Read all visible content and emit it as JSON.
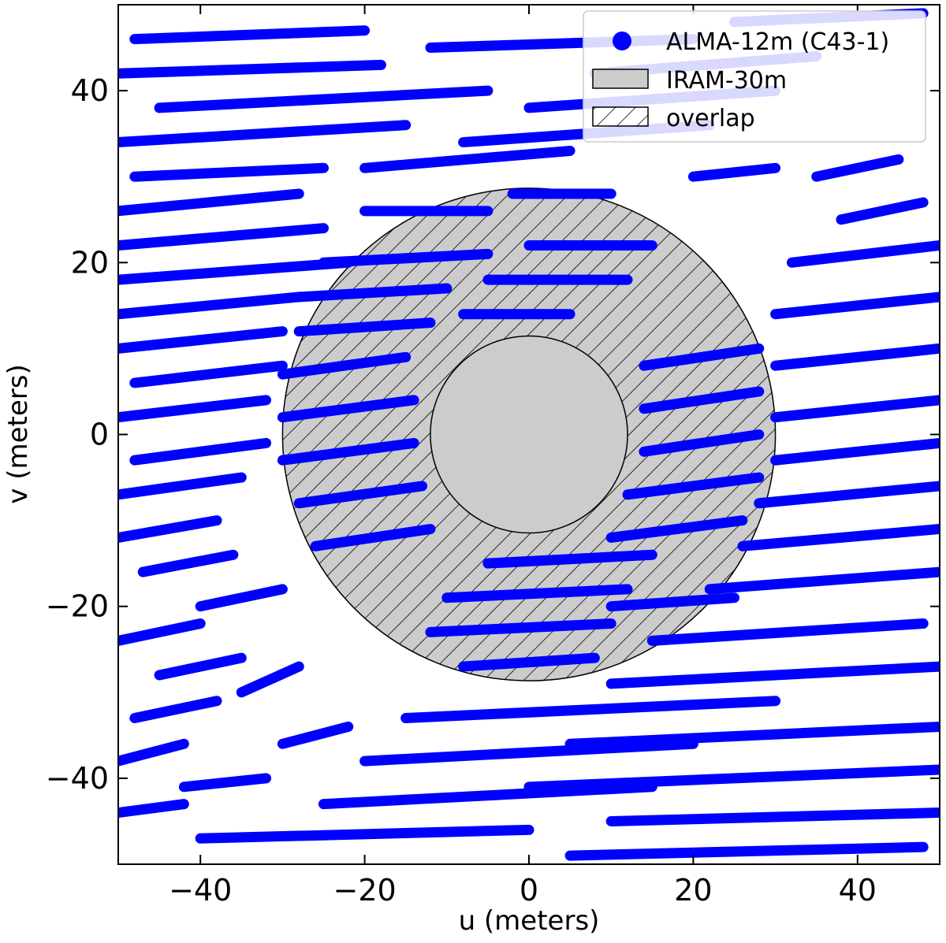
{
  "chart_data": {
    "type": "scatter",
    "xlabel": "u (meters)",
    "ylabel": "v (meters)",
    "xlim": [
      -50,
      50
    ],
    "ylim": [
      -50,
      50
    ],
    "xticks": [
      {
        "value": -40,
        "label": "−40"
      },
      {
        "value": -20,
        "label": "−20"
      },
      {
        "value": 0,
        "label": "0"
      },
      {
        "value": 20,
        "label": "20"
      },
      {
        "value": 40,
        "label": "40"
      }
    ],
    "yticks": [
      {
        "value": -40,
        "label": "−40"
      },
      {
        "value": -20,
        "label": "−20"
      },
      {
        "value": 0,
        "label": "0"
      },
      {
        "value": 20,
        "label": "20"
      },
      {
        "value": 40,
        "label": "40"
      }
    ],
    "grid": false,
    "legend_position": "top-right",
    "series": [
      {
        "name": "ALMA-12m (C43-1)",
        "kind": "uv-tracks",
        "color": "#0000ff",
        "tracks": [
          {
            "x0": -48,
            "y0": 46,
            "x1": -20,
            "y1": 47
          },
          {
            "x0": -50,
            "y0": 42,
            "x1": -18,
            "y1": 43
          },
          {
            "x0": -12,
            "y0": 45,
            "x1": 20,
            "y1": 46
          },
          {
            "x0": 8,
            "y0": 42,
            "x1": 35,
            "y1": 44
          },
          {
            "x0": 25,
            "y0": 48,
            "x1": 48,
            "y1": 49
          },
          {
            "x0": -45,
            "y0": 38,
            "x1": -5,
            "y1": 40
          },
          {
            "x0": 0,
            "y0": 38,
            "x1": 30,
            "y1": 40
          },
          {
            "x0": -50,
            "y0": 34,
            "x1": -15,
            "y1": 36
          },
          {
            "x0": -8,
            "y0": 34,
            "x1": 22,
            "y1": 36
          },
          {
            "x0": -48,
            "y0": 30,
            "x1": -25,
            "y1": 31
          },
          {
            "x0": -20,
            "y0": 31,
            "x1": 5,
            "y1": 33
          },
          {
            "x0": -50,
            "y0": 26,
            "x1": -28,
            "y1": 28
          },
          {
            "x0": -50,
            "y0": 22,
            "x1": -25,
            "y1": 24
          },
          {
            "x0": -50,
            "y0": 18,
            "x1": -22,
            "y1": 20
          },
          {
            "x0": -50,
            "y0": 14,
            "x1": -28,
            "y1": 16
          },
          {
            "x0": -50,
            "y0": 10,
            "x1": -30,
            "y1": 12
          },
          {
            "x0": -48,
            "y0": 6,
            "x1": -30,
            "y1": 8
          },
          {
            "x0": -50,
            "y0": 2,
            "x1": -32,
            "y1": 4
          },
          {
            "x0": -48,
            "y0": -3,
            "x1": -32,
            "y1": -1
          },
          {
            "x0": -50,
            "y0": -7,
            "x1": -35,
            "y1": -5
          },
          {
            "x0": -50,
            "y0": -12,
            "x1": -38,
            "y1": -10
          },
          {
            "x0": -47,
            "y0": -16,
            "x1": -36,
            "y1": -14
          },
          {
            "x0": -20,
            "y0": 26,
            "x1": -5,
            "y1": 26
          },
          {
            "x0": -2,
            "y0": 28,
            "x1": 10,
            "y1": 28
          },
          {
            "x0": -25,
            "y0": 20,
            "x1": -5,
            "y1": 21
          },
          {
            "x0": 0,
            "y0": 22,
            "x1": 15,
            "y1": 22
          },
          {
            "x0": -28,
            "y0": 16,
            "x1": -10,
            "y1": 17
          },
          {
            "x0": -5,
            "y0": 18,
            "x1": 12,
            "y1": 18
          },
          {
            "x0": -28,
            "y0": 12,
            "x1": -12,
            "y1": 13
          },
          {
            "x0": -8,
            "y0": 14,
            "x1": 5,
            "y1": 14
          },
          {
            "x0": -30,
            "y0": 7,
            "x1": -15,
            "y1": 9
          },
          {
            "x0": -30,
            "y0": 2,
            "x1": -14,
            "y1": 4
          },
          {
            "x0": -30,
            "y0": -3,
            "x1": -14,
            "y1": -1
          },
          {
            "x0": -28,
            "y0": -8,
            "x1": -13,
            "y1": -6
          },
          {
            "x0": -26,
            "y0": -13,
            "x1": -12,
            "y1": -11
          },
          {
            "x0": 14,
            "y0": 8,
            "x1": 28,
            "y1": 10
          },
          {
            "x0": 14,
            "y0": 3,
            "x1": 28,
            "y1": 5
          },
          {
            "x0": 14,
            "y0": -2,
            "x1": 28,
            "y1": 0
          },
          {
            "x0": 12,
            "y0": -7,
            "x1": 28,
            "y1": -5
          },
          {
            "x0": 10,
            "y0": -12,
            "x1": 26,
            "y1": -10
          },
          {
            "x0": -5,
            "y0": -15,
            "x1": 15,
            "y1": -14
          },
          {
            "x0": -10,
            "y0": -19,
            "x1": 12,
            "y1": -18
          },
          {
            "x0": -12,
            "y0": -23,
            "x1": 10,
            "y1": -22
          },
          {
            "x0": -8,
            "y0": -27,
            "x1": 8,
            "y1": -26
          },
          {
            "x0": 10,
            "y0": -20,
            "x1": 25,
            "y1": -19
          },
          {
            "x0": 32,
            "y0": 20,
            "x1": 50,
            "y1": 22
          },
          {
            "x0": 30,
            "y0": 14,
            "x1": 50,
            "y1": 16
          },
          {
            "x0": 30,
            "y0": 8,
            "x1": 50,
            "y1": 10
          },
          {
            "x0": 30,
            "y0": 2,
            "x1": 50,
            "y1": 4
          },
          {
            "x0": 30,
            "y0": -3,
            "x1": 50,
            "y1": -1
          },
          {
            "x0": 28,
            "y0": -8,
            "x1": 50,
            "y1": -6
          },
          {
            "x0": 26,
            "y0": -13,
            "x1": 50,
            "y1": -11
          },
          {
            "x0": 22,
            "y0": -18,
            "x1": 50,
            "y1": -16
          },
          {
            "x0": 15,
            "y0": -24,
            "x1": 48,
            "y1": -22
          },
          {
            "x0": 10,
            "y0": -29,
            "x1": 50,
            "y1": -27
          },
          {
            "x0": -15,
            "y0": -33,
            "x1": 30,
            "y1": -31
          },
          {
            "x0": 5,
            "y0": -36,
            "x1": 50,
            "y1": -34
          },
          {
            "x0": -20,
            "y0": -38,
            "x1": 20,
            "y1": -36
          },
          {
            "x0": 0,
            "y0": -41,
            "x1": 50,
            "y1": -39
          },
          {
            "x0": -25,
            "y0": -43,
            "x1": 15,
            "y1": -41
          },
          {
            "x0": 10,
            "y0": -45,
            "x1": 50,
            "y1": -44
          },
          {
            "x0": -40,
            "y0": -47,
            "x1": 0,
            "y1": -46
          },
          {
            "x0": 5,
            "y0": -49,
            "x1": 48,
            "y1": -48
          },
          {
            "x0": -50,
            "y0": -24,
            "x1": -40,
            "y1": -22
          },
          {
            "x0": -45,
            "y0": -28,
            "x1": -35,
            "y1": -26
          },
          {
            "x0": -48,
            "y0": -33,
            "x1": -38,
            "y1": -31
          },
          {
            "x0": -50,
            "y0": -38,
            "x1": -42,
            "y1": -36
          },
          {
            "x0": -42,
            "y0": -41,
            "x1": -32,
            "y1": -40
          },
          {
            "x0": -50,
            "y0": -44,
            "x1": -42,
            "y1": -43
          },
          {
            "x0": -35,
            "y0": -30,
            "x1": -28,
            "y1": -27
          },
          {
            "x0": -30,
            "y0": -36,
            "x1": -22,
            "y1": -34
          },
          {
            "x0": 20,
            "y0": 30,
            "x1": 30,
            "y1": 31
          },
          {
            "x0": 35,
            "y0": 30,
            "x1": 45,
            "y1": 32
          },
          {
            "x0": 38,
            "y0": 25,
            "x1": 48,
            "y1": 27
          },
          {
            "x0": -40,
            "y0": -20,
            "x1": -30,
            "y1": -18
          }
        ]
      },
      {
        "name": "IRAM-30m",
        "kind": "disk",
        "center": [
          0,
          0
        ],
        "radius": 30,
        "color": "#cccccc"
      },
      {
        "name": "overlap",
        "kind": "hatched-annulus",
        "center": [
          0,
          0
        ],
        "inner_radius": 12,
        "outer_radius": 30
      }
    ]
  }
}
